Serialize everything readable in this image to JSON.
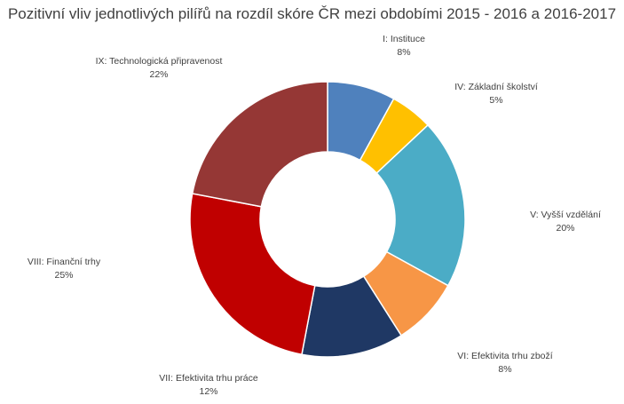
{
  "chart_data": {
    "type": "pie",
    "variant": "donut",
    "title": "Pozitivní vliv jednotlivých pilířů na rozdíl skóre ČR mezi obdobími 2015 - 2016 a 2016-2017",
    "categories": [
      "I: Instituce",
      "IV: Základní školství",
      "V: Vyšší vzdělání",
      "VI: Efektivita trhu zboží",
      "VII: Efektivita trhu práce",
      "VIII: Finanční trhy",
      "IX: Technologická připravenost"
    ],
    "values": [
      8,
      5,
      20,
      8,
      12,
      25,
      22
    ],
    "value_labels": [
      "8%",
      "5%",
      "20%",
      "8%",
      "12%",
      "25%",
      "22%"
    ],
    "colors": [
      "#4F81BD",
      "#FFC000",
      "#4BACC6",
      "#F79646",
      "#1F3864",
      "#C00000",
      "#953735"
    ],
    "legend": "none",
    "start_angle": "top, clockwise"
  }
}
